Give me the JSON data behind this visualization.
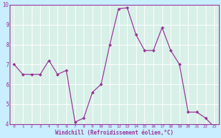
{
  "x": [
    0,
    1,
    2,
    3,
    4,
    5,
    6,
    7,
    8,
    9,
    10,
    11,
    12,
    13,
    14,
    15,
    16,
    17,
    18,
    19,
    20,
    21,
    22,
    23
  ],
  "y": [
    7.0,
    6.5,
    6.5,
    6.5,
    7.2,
    6.5,
    6.7,
    4.1,
    4.3,
    5.6,
    6.0,
    8.0,
    9.8,
    9.85,
    8.5,
    7.7,
    7.7,
    8.85,
    7.7,
    7.0,
    4.6,
    4.6,
    4.3,
    3.85
  ],
  "ylim": [
    4,
    10
  ],
  "xlim": [
    -0.5,
    23.5
  ],
  "yticks": [
    4,
    5,
    6,
    7,
    8,
    9,
    10
  ],
  "xticks": [
    0,
    1,
    2,
    3,
    4,
    5,
    6,
    7,
    8,
    9,
    10,
    11,
    12,
    13,
    14,
    15,
    16,
    17,
    18,
    19,
    20,
    21,
    22,
    23
  ],
  "xlabel": "Windchill (Refroidissement éolien,°C)",
  "line_color": "#993399",
  "marker_color": "#993399",
  "bg_color": "#c8eeff",
  "plot_bg_color": "#d8f0e8",
  "grid_color": "#ffffff",
  "axis_color": "#993399",
  "tick_color": "#993399",
  "label_color": "#993399"
}
